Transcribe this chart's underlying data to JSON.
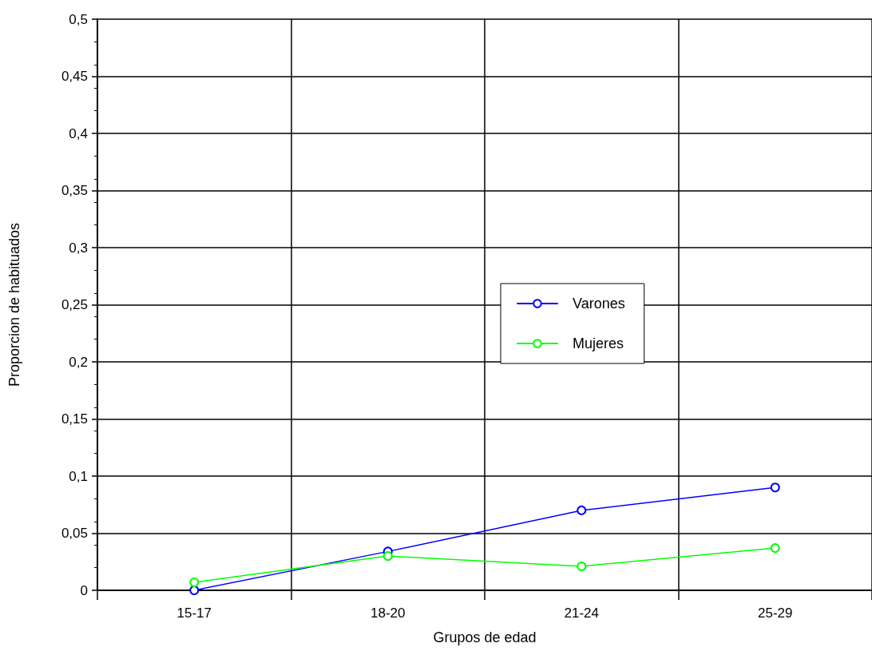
{
  "chart_data": {
    "type": "line",
    "xlabel": "Grupos de edad",
    "ylabel": "Proporcion de habituados",
    "categories": [
      "15-17",
      "18-20",
      "21-24",
      "25-29"
    ],
    "series": [
      {
        "name": "Varones",
        "color": "#0000ff",
        "values": [
          0.0,
          0.034,
          0.07,
          0.09
        ]
      },
      {
        "name": "Mujeres",
        "color": "#00ff00",
        "values": [
          0.007,
          0.03,
          0.021,
          0.037
        ]
      }
    ],
    "ylim": [
      0,
      0.5
    ],
    "yticks": [
      0,
      {
        "value": 0.05,
        "label": "0,05"
      },
      {
        "value": 0.1,
        "label": "0,1"
      },
      {
        "value": 0.15,
        "label": "0,15"
      },
      {
        "value": 0.2,
        "label": "0,2"
      },
      {
        "value": 0.25,
        "label": "0,25"
      },
      {
        "value": 0.3,
        "label": "0,3"
      },
      {
        "value": 0.35,
        "label": "0,35"
      },
      {
        "value": 0.4,
        "label": "0,4"
      },
      {
        "value": 0.45,
        "label": "0,45"
      },
      {
        "value": 0.5,
        "label": "0,5"
      }
    ],
    "grid": true,
    "legend": "right",
    "marker": "circle",
    "line_style": "solid"
  }
}
